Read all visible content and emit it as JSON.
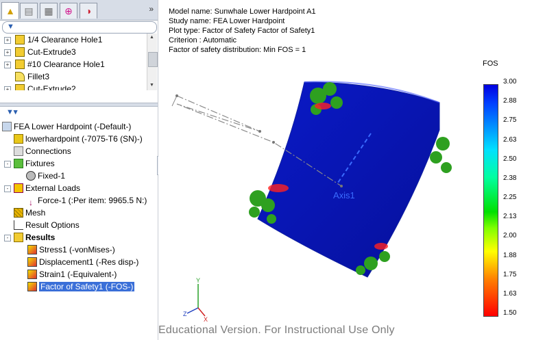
{
  "tabs": [
    "feature-manager-icon",
    "property-manager-icon",
    "configuration-manager-icon",
    "dimxpert-icon",
    "display-manager-icon"
  ],
  "feature_list": [
    {
      "label": "1/4 Clearance Hole1"
    },
    {
      "label": "Cut-Extrude3"
    },
    {
      "label": "#10 Clearance Hole1"
    },
    {
      "label": "Fillet3"
    },
    {
      "label": "Cut-Extrude2"
    }
  ],
  "study_tree": {
    "study": "FEA Lower Hardpoint (-Default-)",
    "part": "lowerhardpoint (-7075-T6 (SN)-)",
    "connections": "Connections",
    "fixtures": "Fixtures",
    "fixed": "Fixed-1",
    "external_loads": "External Loads",
    "force": "Force-1 (:Per item: 9965.5 N:)",
    "mesh": "Mesh",
    "result_options": "Result Options",
    "results": "Results",
    "stress": "Stress1 (-vonMises-)",
    "displacement": "Displacement1 (-Res disp-)",
    "strain": "Strain1 (-Equivalent-)",
    "fos": "Factor of Safety1 (-FOS-)"
  },
  "plot_info": {
    "model": "Model name: Sunwhale Lower Hardpoint A1",
    "study": "Study name: FEA Lower Hardpoint",
    "plot_type": "Plot type: Factor of Safety Factor of Safety1",
    "criterion": "Criterion : Automatic",
    "distribution": "Factor of safety distribution: Min FOS = 1"
  },
  "legend": {
    "title": "FOS",
    "ticks": [
      "3.00",
      "2.88",
      "2.75",
      "2.63",
      "2.50",
      "2.38",
      "2.25",
      "2.13",
      "2.00",
      "1.88",
      "1.75",
      "1.63",
      "1.50"
    ]
  },
  "axis_label": "Axis1",
  "watermark": "Educational Version. For Instructional Use Only",
  "colors": {
    "part": "#0a14b8",
    "fixture": "#2ea020",
    "highlight": "#ff2020"
  }
}
